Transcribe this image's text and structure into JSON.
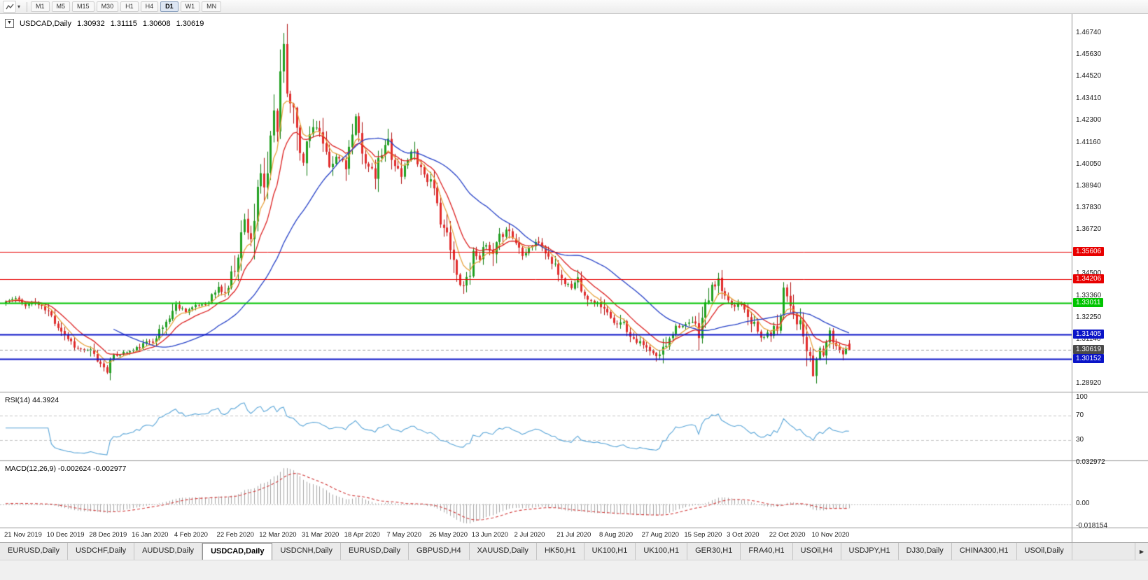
{
  "toolbar": {
    "dropdown_caret": "▾",
    "timeframes": [
      {
        "label": "M1",
        "active": false
      },
      {
        "label": "M5",
        "active": false
      },
      {
        "label": "M15",
        "active": false
      },
      {
        "label": "M30",
        "active": false
      },
      {
        "label": "H1",
        "active": false
      },
      {
        "label": "H4",
        "active": false
      },
      {
        "label": "D1",
        "active": true
      },
      {
        "label": "W1",
        "active": false
      },
      {
        "label": "MN",
        "active": false
      }
    ]
  },
  "chart_title": {
    "dropdown_glyph": "▼",
    "symbol": "USDCAD,Daily",
    "open": "1.30932",
    "high": "1.31115",
    "low": "1.30608",
    "close": "1.30619"
  },
  "chart_data": {
    "type": "candlestick",
    "symbol": "USDCAD",
    "timeframe": "Daily",
    "x_axis": {
      "labels": [
        "21 Nov 2019",
        "10 Dec 2019",
        "28 Dec 2019",
        "16 Jan 2020",
        "4 Feb 2020",
        "22 Feb 2020",
        "12 Mar 2020",
        "31 Mar 2020",
        "18 Apr 2020",
        "7 May 2020",
        "26 May 2020",
        "13 Jun 2020",
        "2 Jul 2020",
        "21 Jul 2020",
        "8 Aug 2020",
        "27 Aug 2020",
        "15 Sep 2020",
        "3 Oct 2020",
        "22 Oct 2020",
        "10 Nov 2020"
      ],
      "indices": [
        0,
        13,
        26,
        39,
        52,
        65,
        78,
        91,
        104,
        117,
        130,
        143,
        156,
        169,
        182,
        195,
        208,
        221,
        234,
        247
      ]
    },
    "y_axis": {
      "ticks": [
        "1.46740",
        "1.45630",
        "1.44520",
        "1.43410",
        "1.42300",
        "1.41160",
        "1.40050",
        "1.38940",
        "1.37830",
        "1.36720",
        "1.34500",
        "1.33360",
        "1.32250",
        "1.31140",
        "1.28920"
      ],
      "top": 1.477,
      "bottom": 1.2848
    },
    "series": {
      "count": 259,
      "seed": 11,
      "last_candle": {
        "o": 1.30932,
        "h": 1.31115,
        "l": 1.30608,
        "c": 1.30619
      },
      "extreme_high": 1.46735,
      "extreme_low": 1.2929,
      "anchors": [
        [
          0,
          1.3308
        ],
        [
          3,
          1.3322
        ],
        [
          6,
          1.329
        ],
        [
          9,
          1.3302
        ],
        [
          13,
          1.3252
        ],
        [
          16,
          1.3185
        ],
        [
          19,
          1.312
        ],
        [
          22,
          1.3068
        ],
        [
          26,
          1.3052
        ],
        [
          29,
          1.2988
        ],
        [
          31,
          1.2968
        ],
        [
          33,
          1.3028
        ],
        [
          36,
          1.3048
        ],
        [
          39,
          1.3058
        ],
        [
          42,
          1.3088
        ],
        [
          45,
          1.3115
        ],
        [
          48,
          1.3175
        ],
        [
          52,
          1.3288
        ],
        [
          55,
          1.3262
        ],
        [
          58,
          1.3282
        ],
        [
          61,
          1.3298
        ],
        [
          65,
          1.3375
        ],
        [
          67,
          1.3348
        ],
        [
          69,
          1.3422
        ],
        [
          71,
          1.3572
        ],
        [
          73,
          1.3718
        ],
        [
          75,
          1.3642
        ],
        [
          77,
          1.3825
        ],
        [
          78,
          1.3928
        ],
        [
          79,
          1.3868
        ],
        [
          81,
          1.4078
        ],
        [
          82,
          1.4268
        ],
        [
          83,
          1.4182
        ],
        [
          84,
          1.4508
        ],
        [
          85,
          1.4615
        ],
        [
          86,
          1.4452
        ],
        [
          87,
          1.4292
        ],
        [
          88,
          1.433
        ],
        [
          90,
          1.4085
        ],
        [
          91,
          1.4048
        ],
        [
          93,
          1.4155
        ],
        [
          95,
          1.4232
        ],
        [
          97,
          1.4098
        ],
        [
          99,
          1.3962
        ],
        [
          101,
          1.4042
        ],
        [
          104,
          1.4018
        ],
        [
          106,
          1.4142
        ],
        [
          107,
          1.4205
        ],
        [
          109,
          1.4088
        ],
        [
          111,
          1.3988
        ],
        [
          113,
          1.3945
        ],
        [
          115,
          1.4058
        ],
        [
          117,
          1.4122
        ],
        [
          119,
          1.4008
        ],
        [
          121,
          1.3942
        ],
        [
          123,
          1.4038
        ],
        [
          125,
          1.4085
        ],
        [
          127,
          1.3988
        ],
        [
          130,
          1.3902
        ],
        [
          132,
          1.3788
        ],
        [
          134,
          1.3688
        ],
        [
          136,
          1.3562
        ],
        [
          138,
          1.3438
        ],
        [
          140,
          1.3388
        ],
        [
          142,
          1.3478
        ],
        [
          143,
          1.3558
        ],
        [
          145,
          1.3538
        ],
        [
          147,
          1.3588
        ],
        [
          149,
          1.3522
        ],
        [
          151,
          1.3628
        ],
        [
          153,
          1.3688
        ],
        [
          156,
          1.3608
        ],
        [
          158,
          1.3552
        ],
        [
          160,
          1.3582
        ],
        [
          162,
          1.3612
        ],
        [
          164,
          1.3588
        ],
        [
          166,
          1.3532
        ],
        [
          169,
          1.3452
        ],
        [
          171,
          1.3402
        ],
        [
          173,
          1.3382
        ],
        [
          175,
          1.3422
        ],
        [
          177,
          1.3352
        ],
        [
          179,
          1.3308
        ],
        [
          182,
          1.3292
        ],
        [
          184,
          1.3238
        ],
        [
          186,
          1.3188
        ],
        [
          188,
          1.3222
        ],
        [
          190,
          1.3162
        ],
        [
          192,
          1.3122
        ],
        [
          195,
          1.3082
        ],
        [
          197,
          1.3052
        ],
        [
          199,
          1.3022
        ],
        [
          201,
          1.3062
        ],
        [
          203,
          1.3132
        ],
        [
          205,
          1.3182
        ],
        [
          208,
          1.3182
        ],
        [
          210,
          1.3202
        ],
        [
          212,
          1.3162
        ],
        [
          214,
          1.3282
        ],
        [
          216,
          1.3382
        ],
        [
          218,
          1.3402
        ],
        [
          220,
          1.3322
        ],
        [
          221,
          1.3302
        ],
        [
          223,
          1.3282
        ],
        [
          225,
          1.3312
        ],
        [
          227,
          1.3252
        ],
        [
          229,
          1.3182
        ],
        [
          231,
          1.3122
        ],
        [
          233,
          1.3142
        ],
        [
          234,
          1.3148
        ],
        [
          236,
          1.3192
        ],
        [
          237,
          1.3292
        ],
        [
          238,
          1.3382
        ],
        [
          239,
          1.3338
        ],
        [
          240,
          1.3318
        ],
        [
          241,
          1.3258
        ],
        [
          242,
          1.3212
        ],
        [
          243,
          1.3178
        ],
        [
          244,
          1.3122
        ],
        [
          245,
          1.3058
        ],
        [
          246,
          1.2992
        ],
        [
          247,
          1.2942
        ],
        [
          248,
          1.3008
        ],
        [
          249,
          1.3068
        ],
        [
          250,
          1.3052
        ],
        [
          251,
          1.3102
        ],
        [
          252,
          1.3138
        ],
        [
          253,
          1.3108
        ],
        [
          254,
          1.3082
        ],
        [
          255,
          1.3062
        ],
        [
          256,
          1.3052
        ],
        [
          257,
          1.3072
        ],
        [
          258,
          1.30619
        ]
      ]
    },
    "colors": {
      "up_fill": "#21a121",
      "up_stroke": "#0e7c0e",
      "down_fill": "#e22b2b",
      "down_stroke": "#b01111"
    },
    "moving_averages": [
      {
        "name": "fast-ma",
        "period": 6,
        "type": "ema",
        "color": "#e8a33d"
      },
      {
        "name": "medium-ma",
        "period": 13,
        "type": "ema",
        "color": "#dd2222"
      },
      {
        "name": "slow-ma",
        "period": 34,
        "type": "sma",
        "color": "#2742c8"
      }
    ],
    "levels": [
      {
        "label": "1.35606",
        "value": 1.35606,
        "color": "#e80000",
        "line_width": 1
      },
      {
        "label": "1.34206",
        "value": 1.34206,
        "color": "#e80000",
        "line_width": 1
      },
      {
        "label": "1.33011",
        "value": 1.33011,
        "color": "#00c400",
        "line_width": 2
      },
      {
        "label": "1.31405",
        "value": 1.31405,
        "color": "#0a14c8",
        "line_width": 2
      },
      {
        "label": "1.30152",
        "value": 1.30152,
        "color": "#0a14c8",
        "line_width": 2
      }
    ],
    "current_price": {
      "label": "1.30619",
      "value": 1.30619,
      "color": "#4a4a4a"
    },
    "rsi": {
      "label": "RSI(14) 44.3924",
      "period": 14,
      "value": "44.3924",
      "axis": [
        "100",
        "70",
        "30"
      ],
      "levels": [
        70,
        30
      ],
      "color": "#58a5d8"
    },
    "macd": {
      "label": "MACD(12,26,9) -0.002624 -0.002977",
      "fast": 12,
      "slow": 26,
      "signal": 9,
      "axis": [
        "0.032972",
        "0.00",
        "-0.018154"
      ],
      "histogram_color": "#a6a6a6",
      "signal_color": "#d23b3b"
    }
  },
  "tabs": {
    "scroll_right": "▶",
    "items": [
      {
        "label": "EURUSD,Daily",
        "active": false
      },
      {
        "label": "USDCHF,Daily",
        "active": false
      },
      {
        "label": "AUDUSD,Daily",
        "active": false
      },
      {
        "label": "USDCAD,Daily",
        "active": true
      },
      {
        "label": "USDCNH,Daily",
        "active": false
      },
      {
        "label": "EURUSD,Daily",
        "active": false
      },
      {
        "label": "GBPUSD,H4",
        "active": false
      },
      {
        "label": "XAUUSD,Daily",
        "active": false
      },
      {
        "label": "HK50,H1",
        "active": false
      },
      {
        "label": "UK100,H1",
        "active": false
      },
      {
        "label": "UK100,H1",
        "active": false
      },
      {
        "label": "GER30,H1",
        "active": false
      },
      {
        "label": "FRA40,H1",
        "active": false
      },
      {
        "label": "USOil,H4",
        "active": false
      },
      {
        "label": "USDJPY,H1",
        "active": false
      },
      {
        "label": "DJ30,Daily",
        "active": false
      },
      {
        "label": "CHINA300,H1",
        "active": false
      },
      {
        "label": "USOil,Daily",
        "active": false
      }
    ]
  }
}
